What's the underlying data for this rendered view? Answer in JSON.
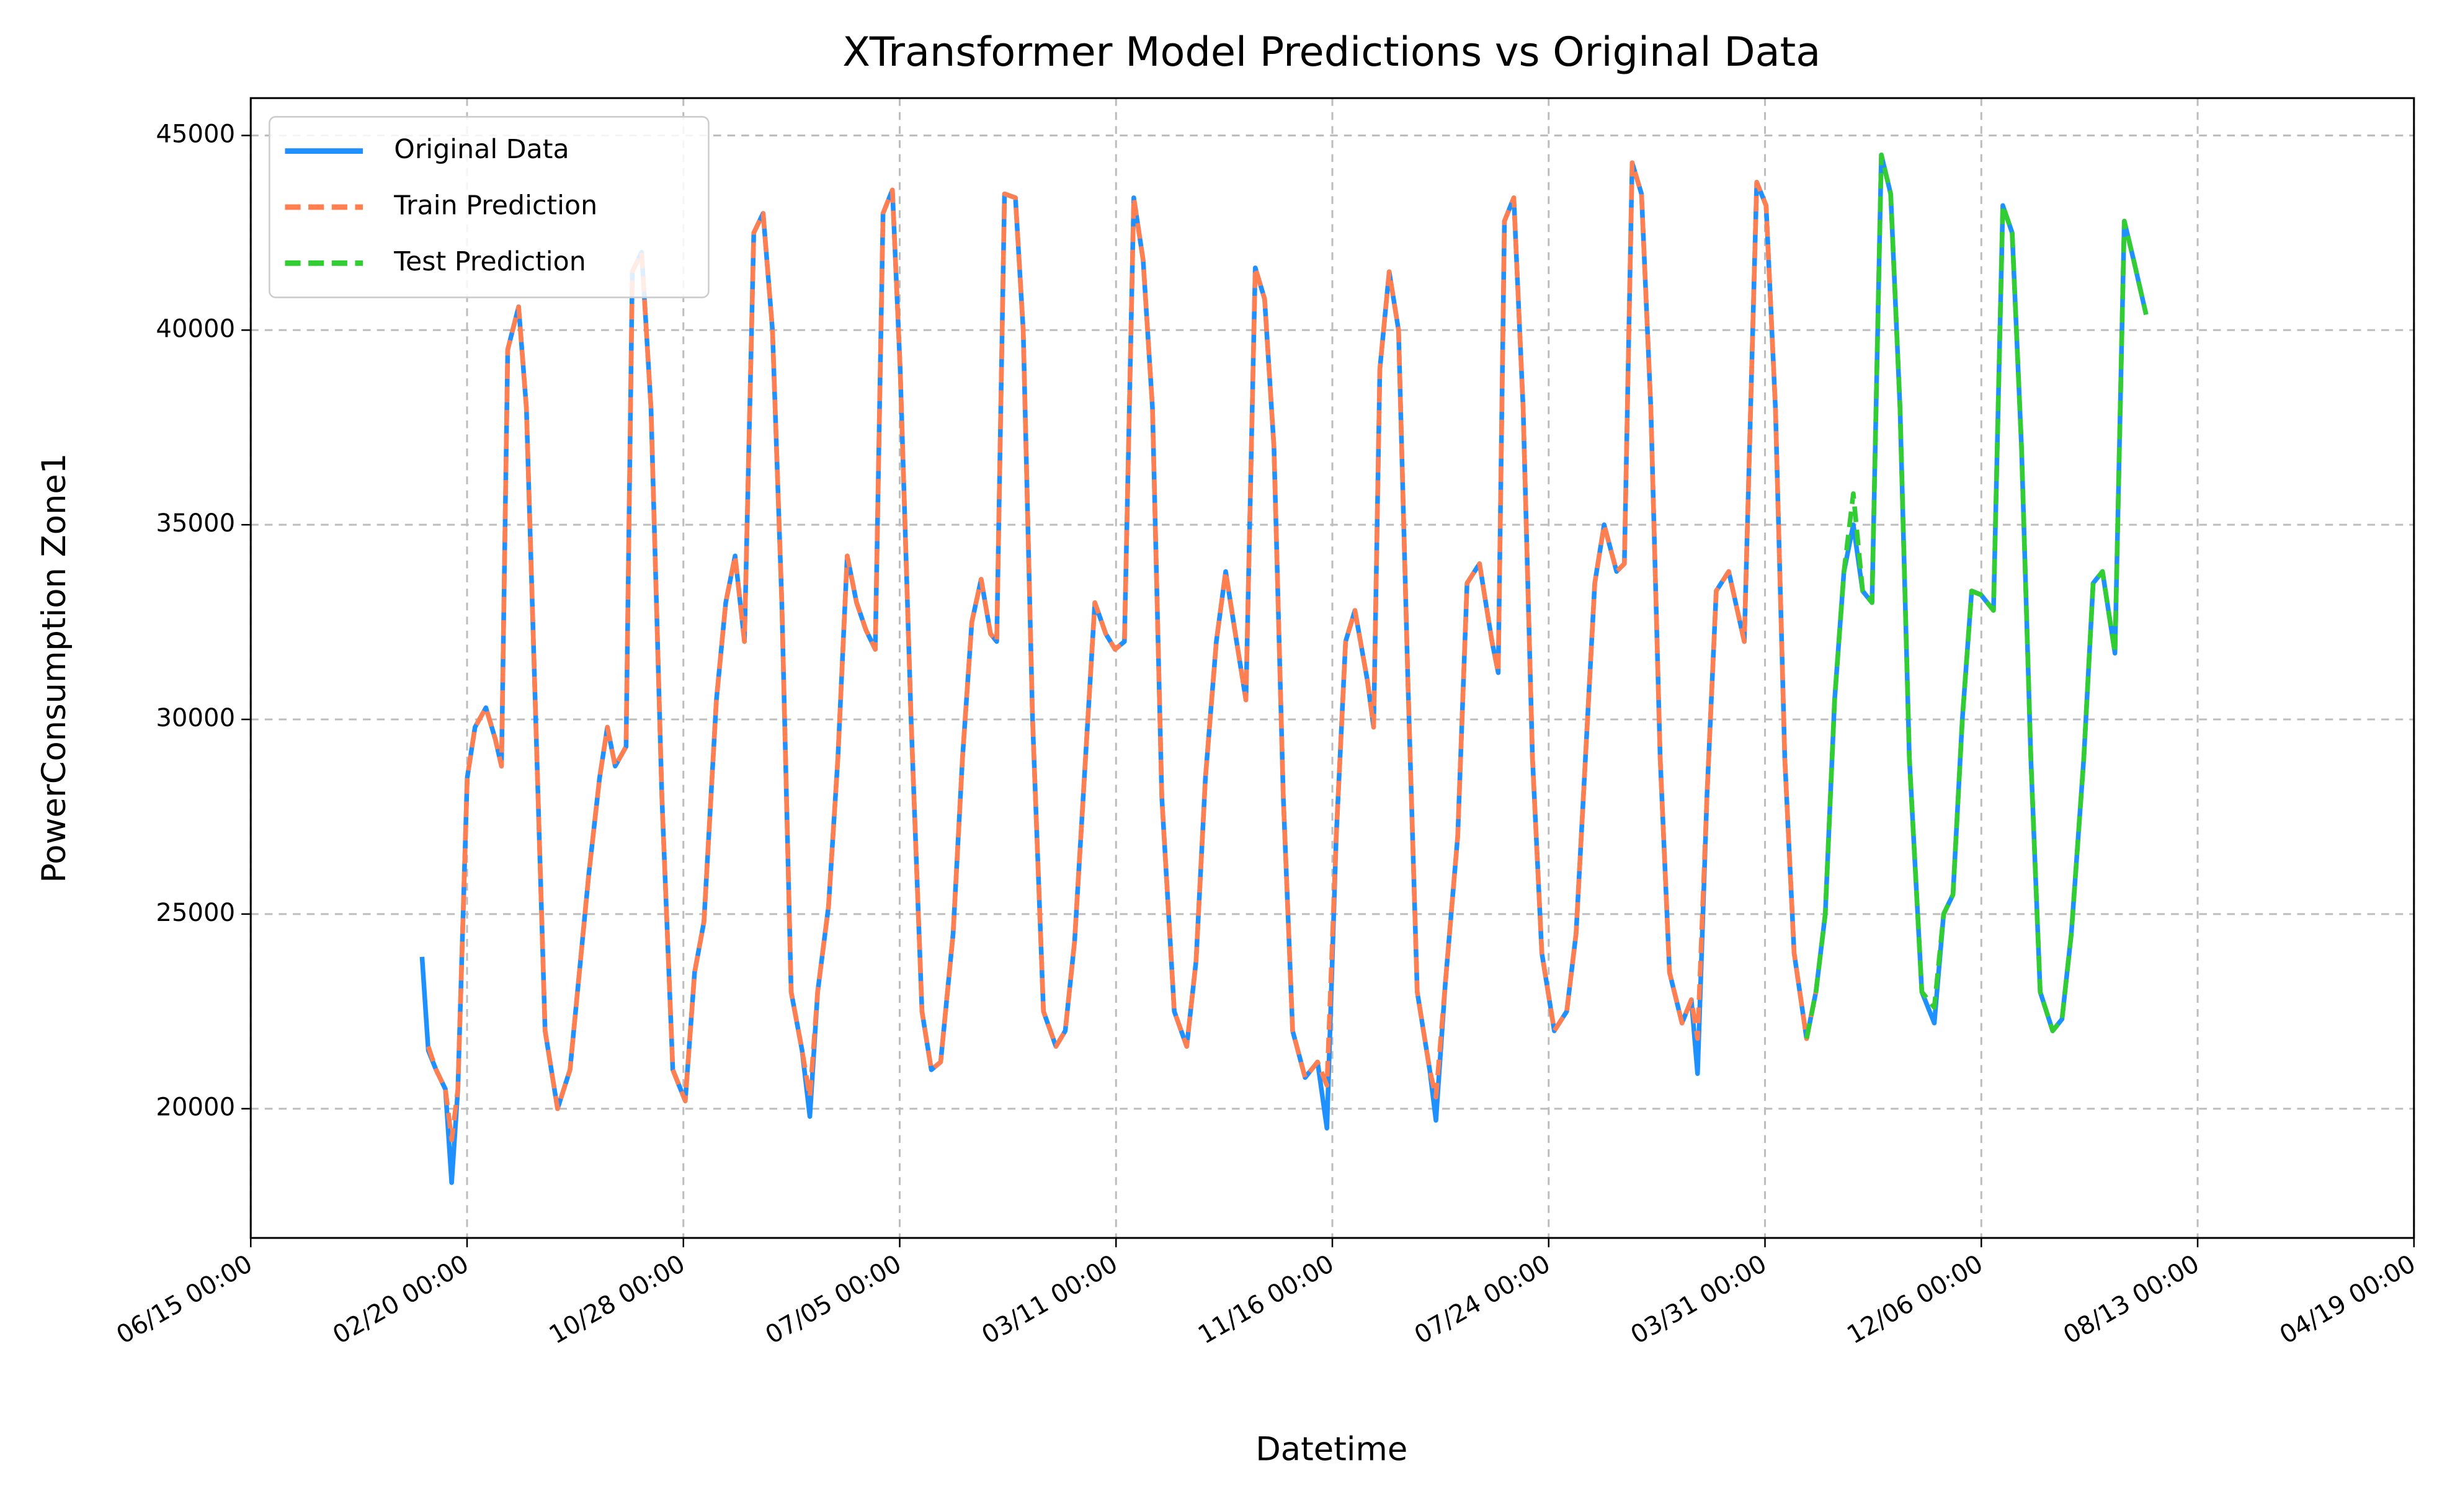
{
  "chart_data": {
    "type": "line",
    "title": "XTransformer Model Predictions vs Original Data",
    "x_label": "Datetime",
    "y_label": "PowerConsumption Zone1",
    "xlim": [
      0,
      1389
    ],
    "xticks": [
      {
        "value": 0,
        "label": "06/15 00:00"
      },
      {
        "value": 138.9,
        "label": "02/20 00:00"
      },
      {
        "value": 277.8,
        "label": "10/28 00:00"
      },
      {
        "value": 416.7,
        "label": "07/05 00:00"
      },
      {
        "value": 555.6,
        "label": "03/11 00:00"
      },
      {
        "value": 694.5,
        "label": "11/16 00:00"
      },
      {
        "value": 833.4,
        "label": "07/24 00:00"
      },
      {
        "value": 972.3,
        "label": "03/31 00:00"
      },
      {
        "value": 1111.2,
        "label": "12/06 00:00"
      },
      {
        "value": 1250.1,
        "label": "08/13 00:00"
      },
      {
        "value": 1389,
        "label": "04/19 00:00"
      }
    ],
    "ylim": [
      16680,
      45960
    ],
    "yticks": [
      20000,
      25000,
      30000,
      35000,
      40000,
      45000
    ],
    "grid": true,
    "legend": "upper left",
    "series": [
      {
        "name": "Original Data",
        "color": "#1e90ff",
        "dash": false,
        "x": [
          110,
          114,
          119,
          125,
          129,
          133,
          139,
          144,
          151,
          157,
          161,
          165,
          172,
          177,
          183,
          189,
          197,
          205,
          211,
          217,
          224,
          229,
          234,
          241,
          245,
          251,
          257,
          264,
          271,
          279,
          285,
          291,
          299,
          305,
          311,
          317,
          323,
          329,
          335,
          341,
          347,
          354,
          359,
          364,
          371,
          377,
          383,
          389,
          395,
          401,
          406,
          412,
          417,
          424,
          431,
          437,
          443,
          451,
          457,
          463,
          469,
          475,
          479,
          484,
          491,
          496,
          502,
          509,
          517,
          523,
          529,
          536,
          542,
          549,
          555,
          561,
          567,
          573,
          579,
          585,
          593,
          601,
          607,
          613,
          620,
          626,
          633,
          639,
          645,
          651,
          657,
          663,
          669,
          677,
          685,
          691,
          697,
          703,
          709,
          717,
          721,
          725,
          731,
          737,
          743,
          749,
          757,
          761,
          767,
          775,
          781,
          789,
          797,
          801,
          805,
          811,
          817,
          823,
          829,
          837,
          845,
          851,
          857,
          863,
          869,
          877,
          882,
          887,
          893,
          899,
          905,
          911,
          919,
          925,
          929,
          935,
          941,
          949,
          959,
          967,
          973,
          979,
          985,
          991,
          999,
          1005,
          1011,
          1017,
          1023,
          1029,
          1035,
          1041,
          1047,
          1053,
          1059,
          1065,
          1073,
          1081,
          1087,
          1093,
          1099,
          1105,
          1111,
          1119,
          1125,
          1131,
          1137,
          1143,
          1149,
          1157,
          1163,
          1169,
          1177,
          1183,
          1189,
          1197,
          1203,
          1209,
          1217
        ],
        "values": [
          23900,
          21500,
          21000,
          20500,
          18100,
          20500,
          28500,
          29800,
          30300,
          29500,
          28800,
          39500,
          40600,
          38000,
          30000,
          22000,
          20000,
          21000,
          23500,
          26000,
          28500,
          29800,
          28800,
          29300,
          41500,
          42000,
          38000,
          28000,
          21000,
          20200,
          23500,
          24800,
          30500,
          33000,
          34200,
          32000,
          42500,
          43000,
          40000,
          33000,
          23000,
          21500,
          19800,
          23000,
          25200,
          29000,
          34200,
          33000,
          32300,
          31800,
          43000,
          43600,
          39000,
          30000,
          22500,
          21000,
          21200,
          24500,
          29000,
          32500,
          33600,
          32200,
          32000,
          43500,
          43400,
          40000,
          30000,
          22500,
          21600,
          22000,
          24300,
          29000,
          33000,
          32200,
          31800,
          32000,
          43400,
          41800,
          38000,
          28000,
          22500,
          21600,
          23800,
          28500,
          32000,
          33800,
          32000,
          30500,
          41600,
          40800,
          37000,
          28000,
          22000,
          20800,
          21200,
          19500,
          27000,
          32000,
          32800,
          31000,
          29800,
          39000,
          41500,
          40000,
          31000,
          23000,
          21000,
          19700,
          23200,
          27000,
          33500,
          34000,
          32000,
          31200,
          42800,
          43400,
          38000,
          29000,
          24000,
          22000,
          22500,
          24500,
          29000,
          33500,
          35000,
          33800,
          34000,
          44300,
          43500,
          38000,
          29000,
          23500,
          22200,
          22800,
          20900,
          28000,
          33300,
          33800,
          32000,
          43800,
          43200,
          38000,
          29000,
          24000,
          21800,
          23000,
          25000,
          30500,
          33800,
          35000,
          33300,
          33000,
          44500,
          43500,
          38000,
          29000,
          23000,
          22200,
          25000,
          25500,
          30000,
          33300,
          33200,
          32800,
          43200,
          42500,
          37000,
          29000,
          23000,
          22000,
          22300,
          24500,
          29000,
          33500,
          33800,
          31700,
          42800,
          41800,
          40400
        ]
      },
      {
        "name": "Train Prediction",
        "color": "#ff7f50",
        "dash": true,
        "x": [
          114,
          119,
          125,
          129,
          133,
          139,
          144,
          151,
          157,
          161,
          165,
          172,
          177,
          183,
          189,
          197,
          205,
          211,
          217,
          224,
          229,
          234,
          241,
          245,
          251,
          257,
          264,
          271,
          279,
          285,
          291,
          299,
          305,
          311,
          317,
          323,
          329,
          335,
          341,
          347,
          354,
          359,
          364,
          371,
          377,
          383,
          389,
          395,
          401,
          406,
          412,
          417,
          424,
          431,
          437,
          443,
          451,
          457,
          463,
          469,
          475,
          479,
          484,
          491,
          496,
          502,
          509,
          517,
          523,
          529,
          536,
          542,
          549,
          555,
          561,
          567,
          573,
          579,
          585,
          593,
          601,
          607,
          613,
          620,
          626,
          633,
          639,
          645,
          651,
          657,
          663,
          669,
          677,
          685,
          691,
          697,
          703,
          709,
          717,
          721,
          725,
          731,
          737,
          743,
          749,
          757,
          761,
          767,
          775,
          781,
          789,
          797,
          801,
          805,
          811,
          817,
          823,
          829,
          837,
          845,
          851,
          857,
          863,
          869,
          877,
          882,
          887,
          893,
          899,
          905,
          911,
          919,
          925,
          929,
          935,
          941,
          949,
          959,
          967,
          973,
          979,
          985,
          991,
          999,
          1005
        ],
        "values": [
          21600,
          21000,
          20500,
          19200,
          20500,
          28500,
          29800,
          30300,
          29500,
          28800,
          39500,
          40600,
          38000,
          30000,
          22000,
          20000,
          21000,
          23500,
          26000,
          28500,
          29800,
          28800,
          29300,
          41500,
          42000,
          38000,
          28000,
          21000,
          20200,
          23500,
          24800,
          30500,
          33000,
          34200,
          32000,
          42500,
          43000,
          40000,
          33000,
          23000,
          21500,
          20300,
          23000,
          25200,
          29000,
          34200,
          33000,
          32300,
          31800,
          43000,
          43600,
          39000,
          30000,
          22500,
          21000,
          21200,
          24500,
          29000,
          32500,
          33600,
          32200,
          32000,
          43500,
          43400,
          40000,
          30000,
          22500,
          21600,
          22000,
          24300,
          29000,
          33000,
          32200,
          31800,
          32000,
          43400,
          41800,
          38000,
          28000,
          22500,
          21600,
          23800,
          28500,
          32000,
          33800,
          32000,
          30500,
          41600,
          40800,
          37000,
          28000,
          22000,
          20800,
          21200,
          20600,
          27000,
          32000,
          32800,
          31000,
          29800,
          39000,
          41500,
          40000,
          31000,
          23000,
          21000,
          20300,
          23200,
          27000,
          33500,
          34000,
          32000,
          31200,
          42800,
          43400,
          38000,
          29000,
          24000,
          22000,
          22500,
          24500,
          29000,
          33500,
          35000,
          33800,
          34000,
          44300,
          43500,
          38000,
          29000,
          23500,
          22200,
          22800,
          21800,
          28000,
          33300,
          33800,
          32000,
          43800,
          43200,
          38000,
          29000,
          24000,
          21800,
          23000
        ]
      },
      {
        "name": "Test Prediction",
        "color": "#32cd32",
        "dash": true,
        "x": [
          999,
          1005,
          1011,
          1017,
          1023,
          1029,
          1035,
          1041,
          1047,
          1053,
          1059,
          1065,
          1073,
          1081,
          1087,
          1093,
          1099,
          1105,
          1111,
          1119,
          1125,
          1131,
          1137,
          1143,
          1149,
          1157,
          1163,
          1169,
          1177,
          1183,
          1189,
          1197,
          1203,
          1209,
          1217
        ],
        "values": [
          21800,
          23000,
          25000,
          30500,
          33800,
          35800,
          33300,
          33000,
          44500,
          43500,
          38000,
          29000,
          23000,
          22600,
          25000,
          25500,
          30000,
          33300,
          33200,
          32800,
          43200,
          42500,
          37000,
          29000,
          23000,
          22000,
          22300,
          24500,
          29000,
          33500,
          33800,
          31700,
          42800,
          41800,
          40400
        ]
      }
    ]
  }
}
